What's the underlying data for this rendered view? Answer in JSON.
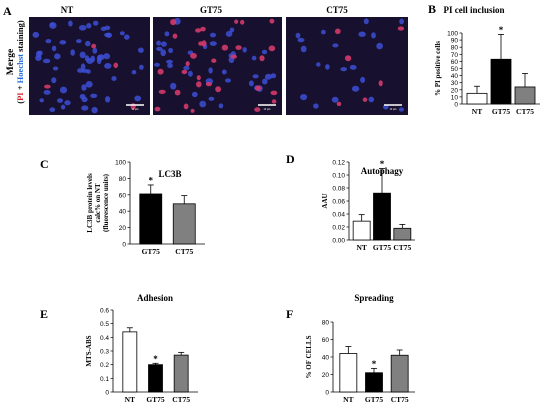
{
  "panel_a": {
    "letter": "A",
    "side_label_1": "Merge",
    "side_label_2_open": "(",
    "side_label_2_pi": "PI",
    "side_label_2_plus": " + ",
    "side_label_2_hoechst": "Hoechst",
    "side_label_2_close": " staining)",
    "images": [
      {
        "label": "NT",
        "scale_bar": "20 µm",
        "red_cells": 4,
        "blue_cells": 60
      },
      {
        "label": "GT75",
        "scale_bar": "20 µm",
        "red_cells": 32,
        "blue_cells": 40
      },
      {
        "label": "CT75",
        "scale_bar": "20 µm",
        "red_cells": 6,
        "blue_cells": 22
      }
    ],
    "colors": {
      "background": "#17102e",
      "nucleus": "#3d4fd6",
      "pi": "#d13a6a"
    }
  },
  "chart_data": [
    {
      "panel": "B",
      "type": "bar",
      "title": "PI  cell inclusion",
      "ylabel": "% PI positive cells",
      "categories": [
        "NT",
        "GT75",
        "CT75"
      ],
      "values": [
        15,
        63,
        24
      ],
      "errors": [
        10,
        35,
        19
      ],
      "colors": [
        "#ffffff",
        "#000000",
        "#808080"
      ],
      "significant": [
        false,
        true,
        false
      ],
      "ylim": [
        0,
        100
      ],
      "yticks": [
        "0",
        "10",
        "20",
        "30",
        "40",
        "50",
        "60",
        "70",
        "80",
        "90",
        "100"
      ]
    },
    {
      "panel": "C",
      "type": "bar",
      "title": "LC3B",
      "ylabel": "LC3B protein levels\ncalc% on NT\n(fluorescence units)",
      "categories": [
        "GT75",
        "CT75"
      ],
      "values": [
        61,
        49
      ],
      "errors": [
        11,
        10
      ],
      "colors": [
        "#000000",
        "#808080"
      ],
      "significant": [
        true,
        false
      ],
      "ylim": [
        0,
        100
      ],
      "yticks": [
        "0",
        "20",
        "40",
        "60",
        "80",
        "100"
      ]
    },
    {
      "panel": "D",
      "type": "bar",
      "title": "Autophagy",
      "ylabel": "AAU",
      "categories": [
        "NT",
        "GT75",
        "CT75"
      ],
      "values": [
        0.029,
        0.072,
        0.018
      ],
      "errors": [
        0.01,
        0.038,
        0.006
      ],
      "colors": [
        "#ffffff",
        "#000000",
        "#808080"
      ],
      "significant": [
        false,
        true,
        false
      ],
      "ylim": [
        0,
        0.12
      ],
      "yticks": [
        "0.00",
        "0.02",
        "0.04",
        "0.06",
        "0.08",
        "0.10",
        "0.12"
      ]
    },
    {
      "panel": "E",
      "type": "bar",
      "title": "Adhesion",
      "ylabel": "MTS-ABS",
      "categories": [
        "NT",
        "GT75",
        "CT75"
      ],
      "values": [
        0.44,
        0.2,
        0.27
      ],
      "errors": [
        0.03,
        0.01,
        0.02
      ],
      "colors": [
        "#ffffff",
        "#000000",
        "#808080"
      ],
      "significant": [
        false,
        true,
        false
      ],
      "ylim": [
        0,
        0.6
      ],
      "yticks": [
        "0",
        "0.1",
        "0.2",
        "0.3",
        "0.4",
        "0.5",
        "0.6"
      ]
    },
    {
      "panel": "F",
      "type": "bar",
      "title": "Spreading",
      "ylabel": "% OF CELLS",
      "categories": [
        "NT",
        "GT75",
        "CT75"
      ],
      "values": [
        44,
        22,
        42
      ],
      "errors": [
        8,
        5,
        6
      ],
      "colors": [
        "#ffffff",
        "#000000",
        "#808080"
      ],
      "significant": [
        false,
        true,
        false
      ],
      "ylim": [
        0,
        80
      ],
      "yticks": [
        "0",
        "20",
        "40",
        "60",
        "80"
      ]
    }
  ]
}
